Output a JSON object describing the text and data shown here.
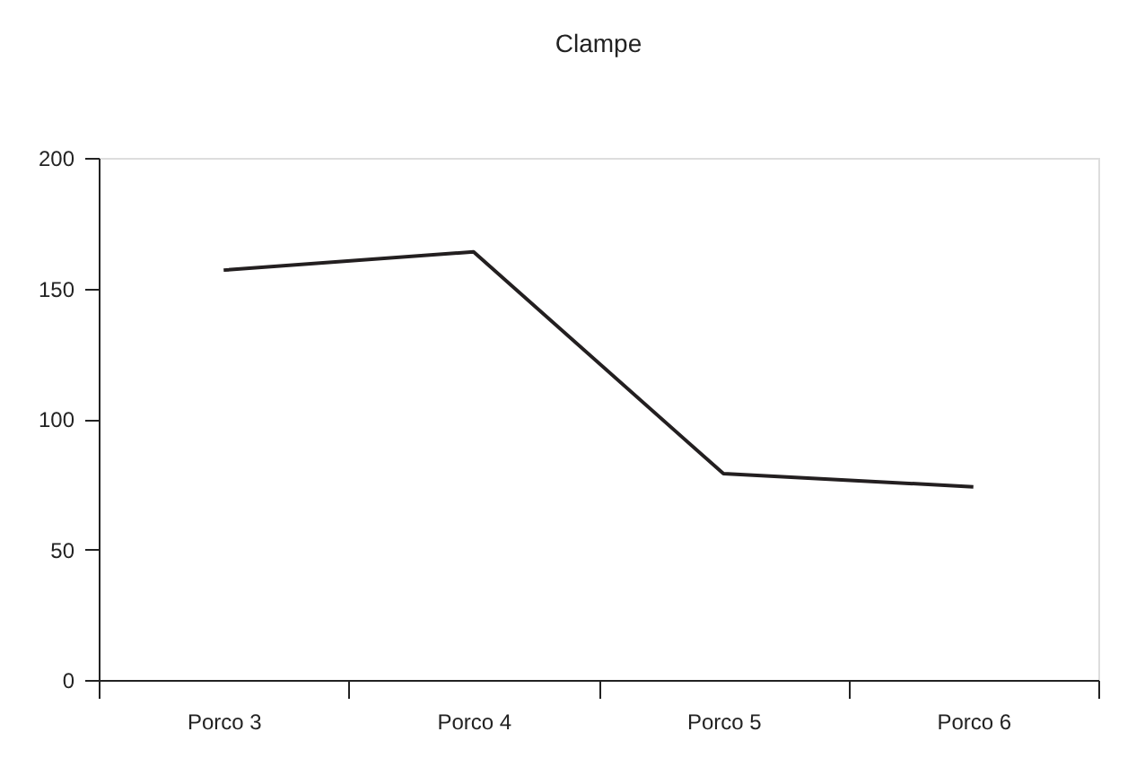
{
  "chart_data": {
    "type": "line",
    "title": "Clampe",
    "categories": [
      "Porco 3",
      "Porco 4",
      "Porco 5",
      "Porco 6"
    ],
    "series": [
      {
        "color": "#231f20",
        "values": [
          157,
          164,
          79,
          74
        ]
      }
    ],
    "ylim": [
      0,
      200
    ],
    "yticks": [
      0,
      50,
      100,
      150,
      200
    ],
    "grid": false,
    "marker": "none",
    "line_style": "solid"
  }
}
